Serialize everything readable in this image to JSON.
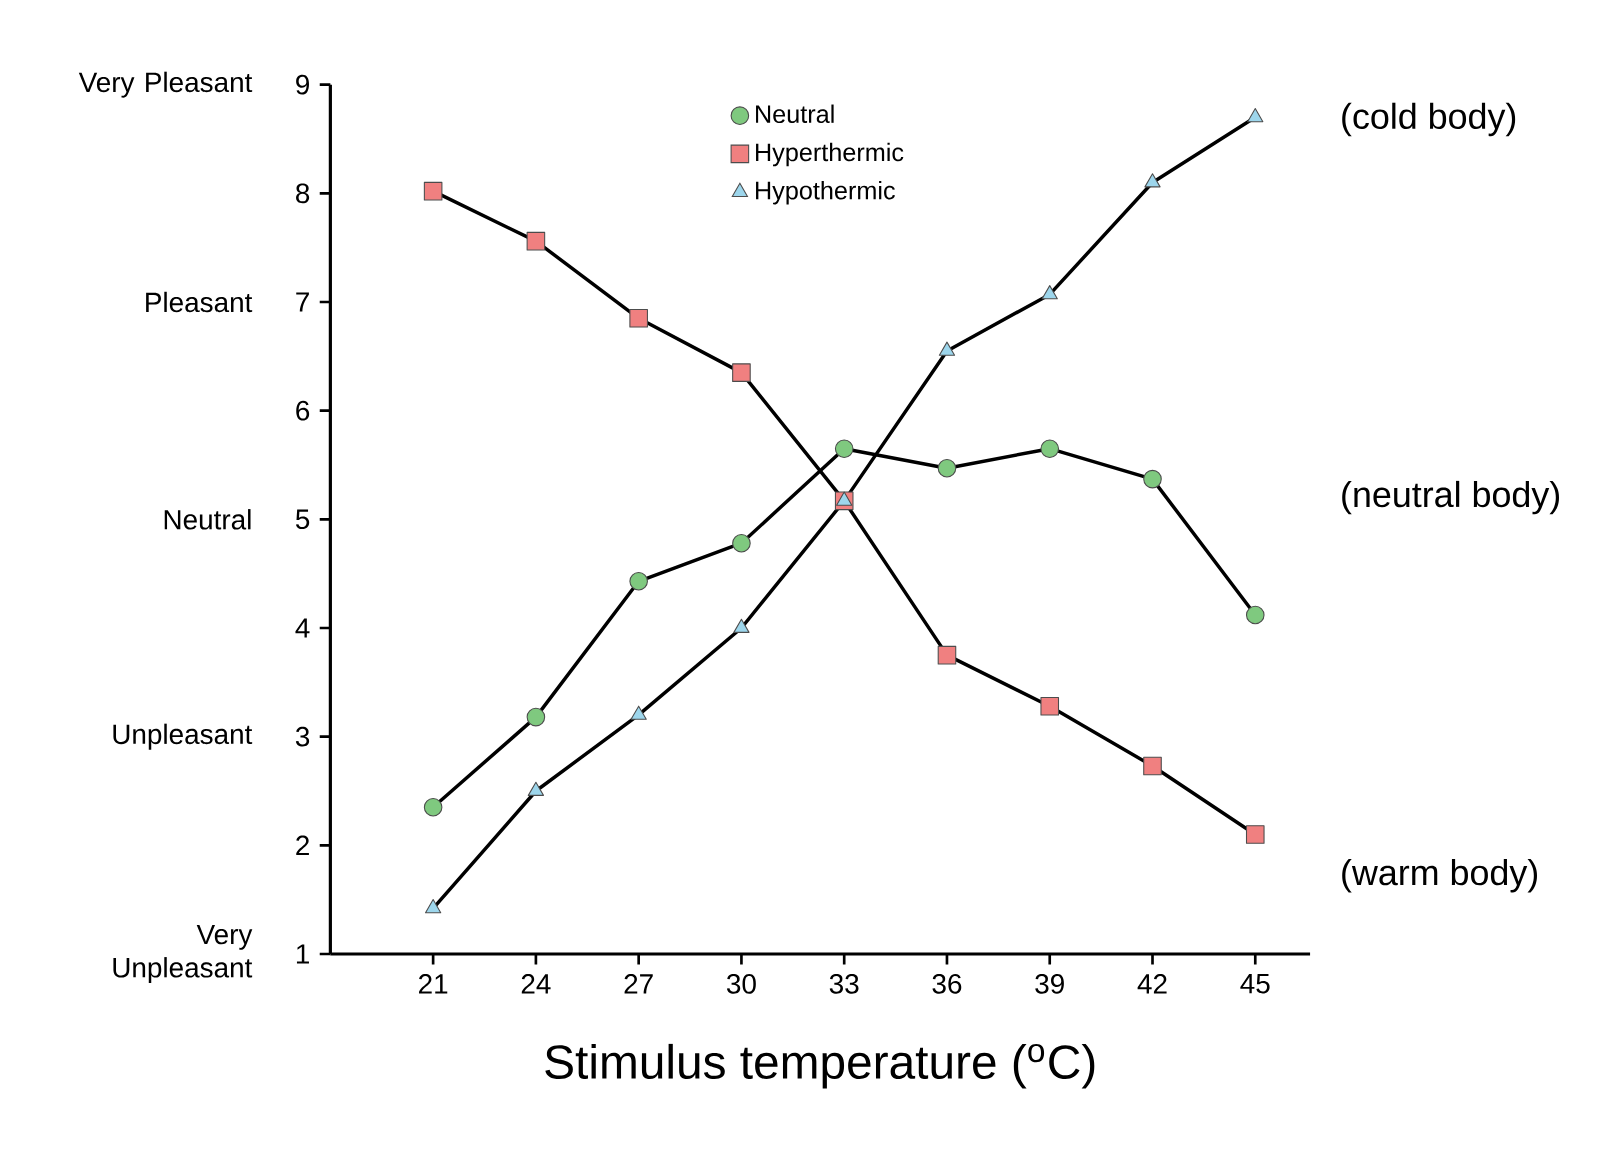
{
  "chart_data": {
    "type": "line",
    "xlabel": "Stimulus temperature ($^{o}$C)",
    "x": [
      21,
      24,
      27,
      30,
      33,
      36,
      39,
      42,
      45
    ],
    "xlim": [
      18,
      46.6
    ],
    "xticks": [
      21,
      24,
      27,
      30,
      33,
      36,
      39,
      42,
      45
    ],
    "ylim": [
      1,
      9
    ],
    "yticks": [
      1,
      2,
      3,
      4,
      5,
      6,
      7,
      8,
      9
    ],
    "series": [
      {
        "name": "Neutral",
        "color": "#7fc97f",
        "marker": "circle",
        "values": [
          2.35,
          3.18,
          4.43,
          4.78,
          5.65,
          5.47,
          5.65,
          5.37,
          4.12
        ]
      },
      {
        "name": "Hyperthermic",
        "color": "#f08080",
        "marker": "square",
        "values": [
          8.02,
          7.56,
          6.85,
          6.35,
          5.17,
          3.75,
          3.28,
          2.73,
          2.1
        ]
      },
      {
        "name": "Hypothermic",
        "color": "#9dd6ec",
        "marker": "triangle",
        "values": [
          1.42,
          2.5,
          3.2,
          4.0,
          5.17,
          6.55,
          7.07,
          8.1,
          8.7
        ]
      }
    ],
    "annotations": [
      "Very Pleasant",
      "Pleasant",
      "Neutral",
      "Unpleasant",
      "Very Unpleasant",
      "(cold body)",
      "(neutral body)",
      "(warm body)"
    ],
    "legend": "top",
    "line_style": "solid",
    "grid": false
  }
}
